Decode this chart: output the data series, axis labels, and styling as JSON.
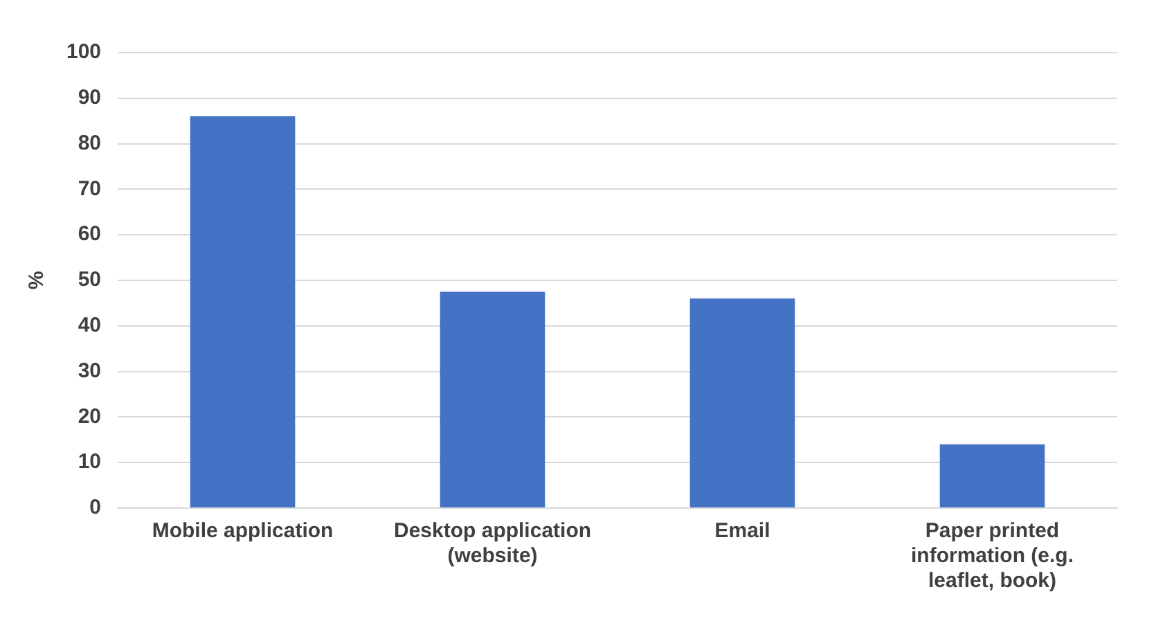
{
  "chart_data": {
    "type": "bar",
    "ylabel": "%",
    "categories": [
      "Mobile application",
      "Desktop application (website)",
      "Email",
      "Paper printed information (e.g. leaflet, book)"
    ],
    "values": [
      86,
      47.5,
      46,
      14
    ],
    "color": "#4472c4",
    "ylim": [
      0,
      100
    ],
    "yticks": [
      0,
      10,
      20,
      30,
      40,
      50,
      60,
      70,
      80,
      90,
      100
    ],
    "grid": "y",
    "legend": false
  }
}
